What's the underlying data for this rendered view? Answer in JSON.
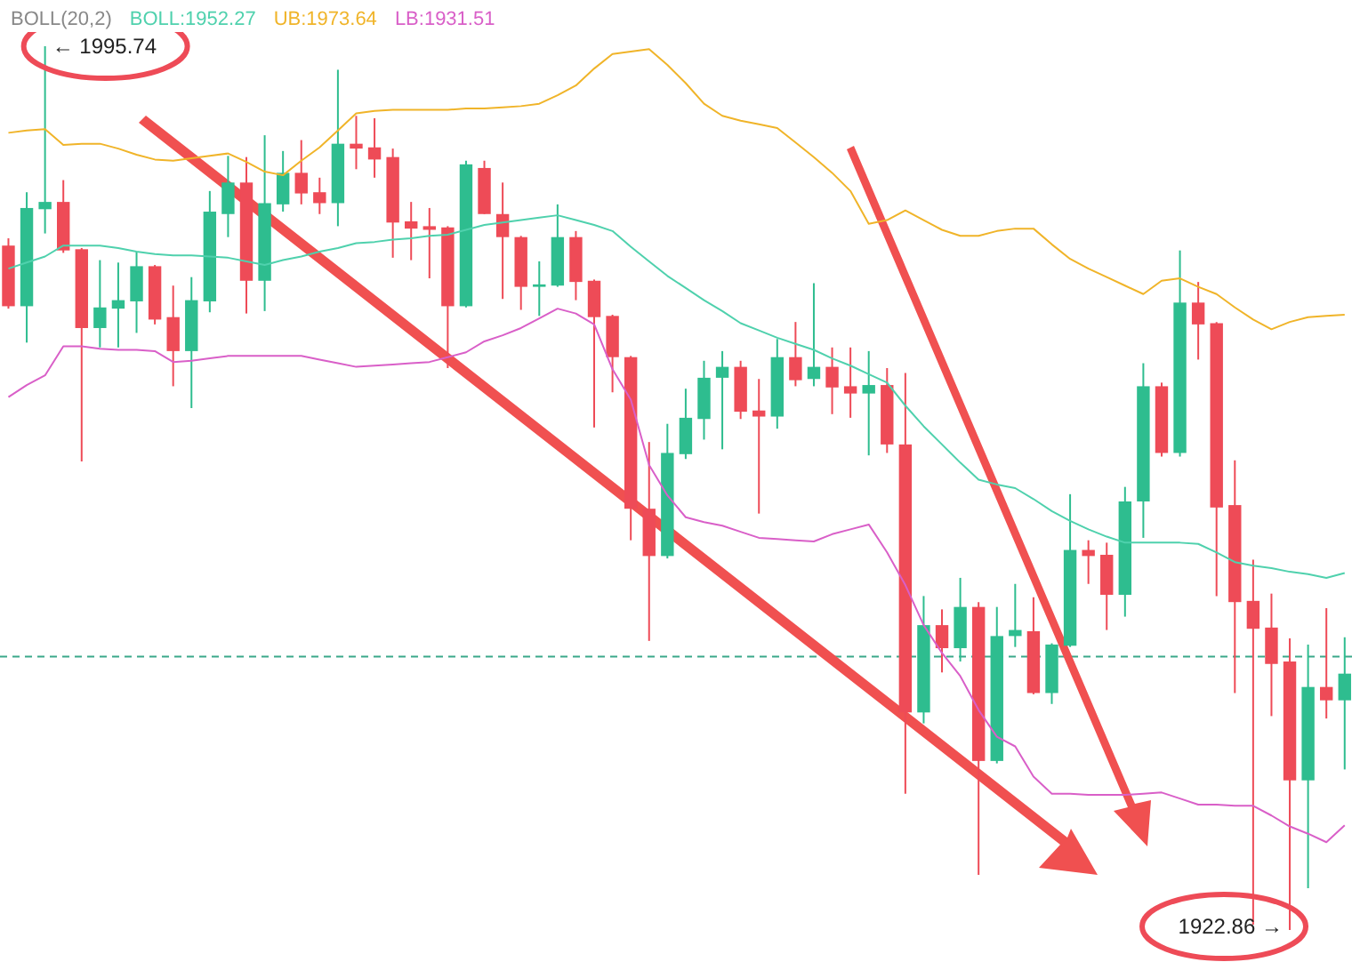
{
  "chart_data": {
    "type": "candlestick",
    "title": "BOLL(20,2)",
    "tick_labels": false,
    "categories": [
      null,
      null,
      null,
      null,
      null,
      null,
      null,
      null,
      null,
      null,
      null,
      null,
      null,
      null,
      null,
      null,
      null,
      null,
      null,
      null,
      null,
      null,
      null,
      null,
      null,
      null,
      null,
      null,
      null,
      null,
      null,
      null,
      null,
      null,
      null,
      null,
      null,
      null,
      null,
      null,
      null,
      null,
      null,
      null,
      null,
      null,
      null,
      null,
      null,
      null,
      null,
      null,
      null,
      null,
      null,
      null,
      null,
      null,
      null,
      null,
      null,
      null,
      null,
      null,
      null,
      null,
      null,
      null,
      null,
      null,
      null,
      null,
      null,
      null
    ],
    "ohlc": [
      [
        1979.3,
        1979.9,
        1974.1,
        1974.3
      ],
      [
        1974.3,
        1983.7,
        1971.3,
        1982.4
      ],
      [
        1982.3,
        1995.74,
        1980.3,
        1982.9
      ],
      [
        1982.9,
        1984.7,
        1978.7,
        1978.9
      ],
      [
        1979.0,
        1979.1,
        1961.5,
        1972.5
      ],
      [
        1972.5,
        1978.1,
        1970.9,
        1974.2
      ],
      [
        1974.1,
        1977.9,
        1970.9,
        1974.8
      ],
      [
        1974.7,
        1978.8,
        1972.1,
        1977.6
      ],
      [
        1977.6,
        1977.7,
        1972.8,
        1973.2
      ],
      [
        1973.4,
        1976.0,
        1967.7,
        1970.6
      ],
      [
        1970.6,
        1976.7,
        1965.9,
        1974.8
      ],
      [
        1974.7,
        1983.8,
        1973.8,
        1982.1
      ],
      [
        1981.9,
        1986.7,
        1980.0,
        1984.5
      ],
      [
        1984.5,
        1986.6,
        1973.7,
        1976.4
      ],
      [
        1976.4,
        1988.4,
        1973.9,
        1982.8
      ],
      [
        1982.7,
        1987.1,
        1982.1,
        1985.3
      ],
      [
        1985.3,
        1988.0,
        1982.7,
        1983.6
      ],
      [
        1983.7,
        1984.9,
        1981.9,
        1982.8
      ],
      [
        1982.8,
        1993.8,
        1980.9,
        1987.7
      ],
      [
        1987.7,
        1990.0,
        1985.6,
        1987.3
      ],
      [
        1987.4,
        1989.8,
        1984.9,
        1986.4
      ],
      [
        1986.6,
        1987.3,
        1978.3,
        1981.2
      ],
      [
        1981.3,
        1982.9,
        1978.1,
        1980.7
      ],
      [
        1980.9,
        1982.4,
        1976.6,
        1980.6
      ],
      [
        1980.8,
        1980.9,
        1969.2,
        1974.3
      ],
      [
        1974.3,
        1986.3,
        1974.2,
        1986.0
      ],
      [
        1985.7,
        1986.3,
        1981.9,
        1981.9
      ],
      [
        1981.9,
        1984.5,
        1974.9,
        1980.0
      ],
      [
        1980.0,
        1980.1,
        1974.0,
        1975.9
      ],
      [
        1975.9,
        1978.0,
        1973.5,
        1976.1
      ],
      [
        1976.0,
        1982.7,
        1975.9,
        1980.0
      ],
      [
        1980.0,
        1980.5,
        1974.8,
        1976.3
      ],
      [
        1976.4,
        1976.5,
        1964.3,
        1973.4
      ],
      [
        1973.5,
        1973.6,
        1967.2,
        1970.1
      ],
      [
        1970.1,
        1970.2,
        1955.0,
        1957.6
      ],
      [
        1957.6,
        1963.1,
        1946.7,
        1953.7
      ],
      [
        1953.7,
        1964.6,
        1953.5,
        1962.2
      ],
      [
        1962.1,
        1967.5,
        1961.7,
        1965.1
      ],
      [
        1965.0,
        1969.8,
        1963.3,
        1968.4
      ],
      [
        1968.4,
        1970.6,
        1962.5,
        1969.3
      ],
      [
        1969.3,
        1969.8,
        1965.0,
        1965.6
      ],
      [
        1965.7,
        1968.3,
        1957.2,
        1965.2
      ],
      [
        1965.2,
        1971.6,
        1964.2,
        1970.1
      ],
      [
        1970.1,
        1973.0,
        1967.7,
        1968.2
      ],
      [
        1968.3,
        1976.2,
        1967.7,
        1969.3
      ],
      [
        1969.3,
        1970.9,
        1965.4,
        1967.6
      ],
      [
        1967.7,
        1970.9,
        1965.1,
        1967.1
      ],
      [
        1967.1,
        1970.6,
        1962.0,
        1967.8
      ],
      [
        1967.8,
        1969.2,
        1962.2,
        1962.9
      ],
      [
        1962.9,
        1968.8,
        1934.1,
        1940.8
      ],
      [
        1940.8,
        1950.4,
        1939.9,
        1948.0
      ],
      [
        1948.0,
        1949.3,
        1944.1,
        1946.1
      ],
      [
        1946.1,
        1951.9,
        1945.0,
        1949.5
      ],
      [
        1949.5,
        1949.9,
        1927.4,
        1936.8
      ],
      [
        1936.8,
        1949.5,
        1936.6,
        1947.1
      ],
      [
        1947.1,
        1951.4,
        1946.2,
        1947.6
      ],
      [
        1947.5,
        1950.3,
        1942.3,
        1942.4
      ],
      [
        1942.4,
        1946.5,
        1941.5,
        1946.4
      ],
      [
        1946.3,
        1958.8,
        1946.2,
        1954.2
      ],
      [
        1954.2,
        1955.0,
        1951.4,
        1953.7
      ],
      [
        1953.8,
        1954.8,
        1947.6,
        1950.5
      ],
      [
        1950.5,
        1959.4,
        1948.7,
        1958.2
      ],
      [
        1958.2,
        1969.6,
        1955.2,
        1967.7
      ],
      [
        1967.7,
        1968.0,
        1961.9,
        1962.2
      ],
      [
        1962.2,
        1978.9,
        1961.9,
        1974.6
      ],
      [
        1974.6,
        1976.3,
        1969.9,
        1972.8
      ],
      [
        1972.9,
        1973.0,
        1950.4,
        1957.7
      ],
      [
        1957.9,
        1961.6,
        1942.4,
        1949.9
      ],
      [
        1950.0,
        1953.4,
        1923.3,
        1947.7
      ],
      [
        1947.8,
        1950.6,
        1940.5,
        1944.8
      ],
      [
        1945.0,
        1946.9,
        1922.86,
        1935.2
      ],
      [
        1935.2,
        1946.4,
        1926.3,
        1942.9
      ],
      [
        1942.9,
        1949.4,
        1940.3,
        1941.8
      ],
      [
        1941.8,
        1947.0,
        1936.1,
        1944.0
      ]
    ],
    "series": [
      {
        "name": "BOLL:1952.27",
        "type": "line",
        "color": "#4fd1ad",
        "values": [
          1977.4,
          1977.9,
          1978.4,
          1979.3,
          1979.3,
          1979.3,
          1979.1,
          1978.8,
          1978.6,
          1978.5,
          1978.5,
          1978.4,
          1978.3,
          1978.0,
          1977.7,
          1978.1,
          1978.4,
          1978.8,
          1979.1,
          1979.5,
          1979.6,
          1979.8,
          1979.9,
          1980.1,
          1980.2,
          1980.6,
          1981.0,
          1981.2,
          1981.4,
          1981.6,
          1981.8,
          1981.4,
          1981.0,
          1980.5,
          1979.2,
          1978.0,
          1976.8,
          1975.8,
          1974.8,
          1973.9,
          1972.9,
          1972.3,
          1971.7,
          1971.2,
          1970.7,
          1970.0,
          1969.4,
          1968.7,
          1968.0,
          1966.1,
          1964.4,
          1962.9,
          1961.4,
          1960.0,
          1959.6,
          1959.3,
          1958.4,
          1957.4,
          1956.6,
          1955.9,
          1955.3,
          1954.8,
          1954.8,
          1954.8,
          1954.8,
          1954.7,
          1954.0,
          1953.2,
          1952.9,
          1952.7,
          1952.4,
          1952.2,
          1951.9,
          1952.3
        ]
      },
      {
        "name": "UB:1973.64",
        "type": "line",
        "color": "#f0b429",
        "values": [
          1988.6,
          1988.8,
          1988.9,
          1987.6,
          1987.7,
          1987.7,
          1987.3,
          1986.8,
          1986.4,
          1986.3,
          1986.5,
          1986.7,
          1986.9,
          1986.2,
          1985.4,
          1985.1,
          1986.3,
          1987.4,
          1988.8,
          1990.2,
          1990.4,
          1990.5,
          1990.5,
          1990.5,
          1990.5,
          1990.6,
          1990.6,
          1990.7,
          1990.8,
          1991.0,
          1991.7,
          1992.5,
          1993.9,
          1995.1,
          1995.3,
          1995.5,
          1994.2,
          1992.7,
          1991.0,
          1990.0,
          1989.6,
          1989.3,
          1989.0,
          1987.8,
          1986.6,
          1985.3,
          1983.8,
          1981.1,
          1981.4,
          1982.2,
          1981.4,
          1980.6,
          1980.1,
          1980.1,
          1980.5,
          1980.7,
          1980.7,
          1979.4,
          1978.2,
          1977.4,
          1976.7,
          1976.0,
          1975.3,
          1976.4,
          1976.6,
          1975.9,
          1975.3,
          1974.2,
          1973.2,
          1972.4,
          1973.0,
          1973.4,
          1973.5,
          1973.6
        ]
      },
      {
        "name": "LB:1931.51",
        "type": "line",
        "color": "#d95fc8",
        "values": [
          1966.8,
          1967.8,
          1968.6,
          1971.0,
          1971.0,
          1970.8,
          1970.7,
          1970.7,
          1970.6,
          1969.7,
          1969.8,
          1970.0,
          1970.2,
          1970.2,
          1970.2,
          1970.2,
          1970.2,
          1969.9,
          1969.6,
          1969.3,
          1969.4,
          1969.5,
          1969.6,
          1969.7,
          1970.1,
          1970.5,
          1971.4,
          1971.9,
          1972.5,
          1973.3,
          1974.1,
          1973.7,
          1972.8,
          1969.1,
          1966.6,
          1961.2,
          1958.7,
          1956.9,
          1956.5,
          1956.2,
          1955.7,
          1955.2,
          1955.1,
          1955.0,
          1954.9,
          1955.5,
          1955.9,
          1956.3,
          1954.0,
          1951.3,
          1948.0,
          1945.7,
          1943.8,
          1941.0,
          1938.8,
          1938.0,
          1935.5,
          1934.1,
          1934.1,
          1934.0,
          1934.0,
          1934.0,
          1934.1,
          1934.2,
          1933.7,
          1933.2,
          1933.2,
          1933.1,
          1933.1,
          1932.3,
          1931.4,
          1930.8,
          1930.1,
          1931.5
        ]
      }
    ],
    "ref_lines": [
      {
        "axis": "y",
        "value": 1945.4,
        "color": "#3aa88a",
        "line_style": "dashed"
      }
    ],
    "annotations": [
      "← 1995.74",
      "1922.86 →"
    ]
  }
}
